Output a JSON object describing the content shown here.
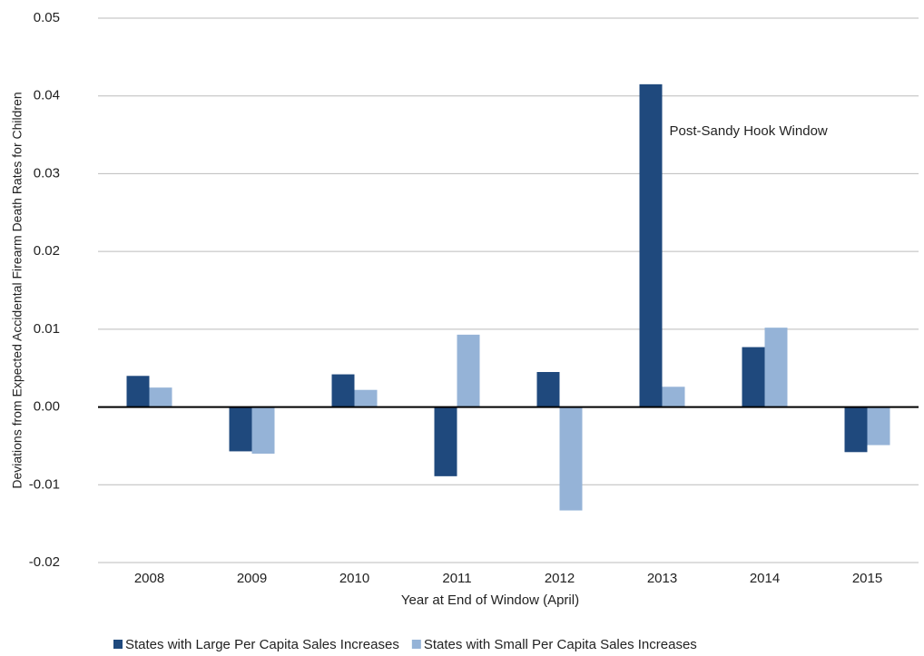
{
  "chart_data": {
    "type": "bar",
    "x_label": "Year at End of Window (April)",
    "y_label": "Deviations from Expected Accidental Firearm Death Rates for Children",
    "annotation": "Post-Sandy Hook Window",
    "categories": [
      "2008",
      "2009",
      "2010",
      "2011",
      "2012",
      "2013",
      "2014",
      "2015"
    ],
    "series": [
      {
        "name": "States with Large Per Capita Sales Increases",
        "color": "#1f497d",
        "values": [
          0.004,
          -0.0057,
          0.0042,
          -0.0089,
          0.0045,
          0.0415,
          0.0077,
          -0.0058
        ]
      },
      {
        "name": "States with Small Per Capita Sales Increases",
        "color": "#95b3d7",
        "values": [
          0.0025,
          -0.006,
          0.0022,
          0.0093,
          -0.0133,
          0.0026,
          0.0102,
          -0.0049
        ]
      }
    ],
    "ylim": [
      -0.02,
      0.05
    ],
    "yticks": [
      -0.02,
      -0.01,
      {
        "value": 0,
        "label": "0.00"
      },
      0.01,
      0.02,
      0.03,
      0.04,
      0.05
    ],
    "grid": true,
    "legend": "bottom"
  }
}
